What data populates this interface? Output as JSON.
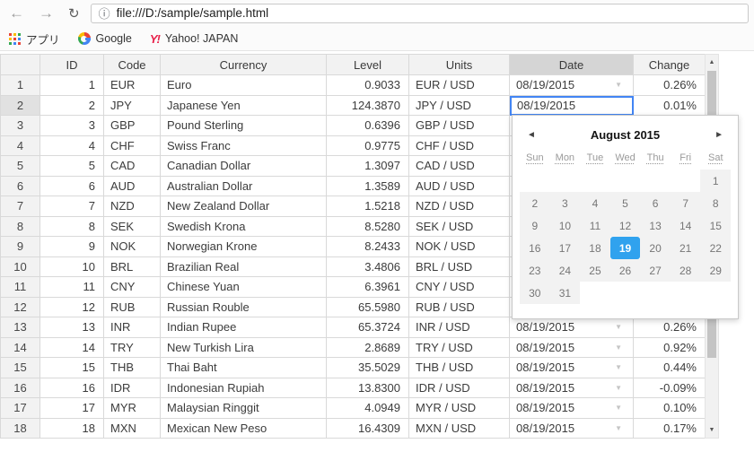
{
  "browser": {
    "toolbar": {
      "url": "file:///D:/sample/sample.html"
    },
    "bookmarks_bar": {
      "items": [
        {
          "label": "アプリ"
        },
        {
          "label": "Google"
        },
        {
          "label": "Yahoo! JAPAN"
        }
      ]
    }
  },
  "icons": {
    "back": "←",
    "forward": "→",
    "reload": "↻",
    "info": "ⓘ",
    "dropdown": "▼",
    "yahoo": "Y!",
    "calendar_prev": "◄",
    "calendar_next": "►",
    "scroll_up": "▲",
    "scroll_down": "▼"
  },
  "table": {
    "columns": [
      "ID",
      "Code",
      "Currency",
      "Level",
      "Units",
      "Date",
      "Change"
    ],
    "selected": {
      "row": 2,
      "column": "Date"
    },
    "rows": [
      {
        "id": "1",
        "code": "EUR",
        "currency": "Euro",
        "level": "0.9033",
        "units": "EUR / USD",
        "date": "08/19/2015",
        "change": "0.26%"
      },
      {
        "id": "2",
        "code": "JPY",
        "currency": "Japanese Yen",
        "level": "124.3870",
        "units": "JPY / USD",
        "date": "08/19/2015",
        "change": "0.01%"
      },
      {
        "id": "3",
        "code": "GBP",
        "currency": "Pound Sterling",
        "level": "0.6396",
        "units": "GBP / USD",
        "date": "",
        "change": ""
      },
      {
        "id": "4",
        "code": "CHF",
        "currency": "Swiss Franc",
        "level": "0.9775",
        "units": "CHF / USD",
        "date": "",
        "change": ""
      },
      {
        "id": "5",
        "code": "CAD",
        "currency": "Canadian Dollar",
        "level": "1.3097",
        "units": "CAD / USD",
        "date": "",
        "change": ""
      },
      {
        "id": "6",
        "code": "AUD",
        "currency": "Australian Dollar",
        "level": "1.3589",
        "units": "AUD / USD",
        "date": "",
        "change": ""
      },
      {
        "id": "7",
        "code": "NZD",
        "currency": "New Zealand Dollar",
        "level": "1.5218",
        "units": "NZD / USD",
        "date": "",
        "change": ""
      },
      {
        "id": "8",
        "code": "SEK",
        "currency": "Swedish Krona",
        "level": "8.5280",
        "units": "SEK / USD",
        "date": "",
        "change": ""
      },
      {
        "id": "9",
        "code": "NOK",
        "currency": "Norwegian Krone",
        "level": "8.2433",
        "units": "NOK / USD",
        "date": "",
        "change": ""
      },
      {
        "id": "10",
        "code": "BRL",
        "currency": "Brazilian Real",
        "level": "3.4806",
        "units": "BRL / USD",
        "date": "",
        "change": ""
      },
      {
        "id": "11",
        "code": "CNY",
        "currency": "Chinese Yuan",
        "level": "6.3961",
        "units": "CNY / USD",
        "date": "",
        "change": ""
      },
      {
        "id": "12",
        "code": "RUB",
        "currency": "Russian Rouble",
        "level": "65.5980",
        "units": "RUB / USD",
        "date": "",
        "change": ""
      },
      {
        "id": "13",
        "code": "INR",
        "currency": "Indian Rupee",
        "level": "65.3724",
        "units": "INR / USD",
        "date": "08/19/2015",
        "change": "0.26%"
      },
      {
        "id": "14",
        "code": "TRY",
        "currency": "New Turkish Lira",
        "level": "2.8689",
        "units": "TRY / USD",
        "date": "08/19/2015",
        "change": "0.92%"
      },
      {
        "id": "15",
        "code": "THB",
        "currency": "Thai Baht",
        "level": "35.5029",
        "units": "THB / USD",
        "date": "08/19/2015",
        "change": "0.44%"
      },
      {
        "id": "16",
        "code": "IDR",
        "currency": "Indonesian Rupiah",
        "level": "13.8300",
        "units": "IDR / USD",
        "date": "08/19/2015",
        "change": "-0.09%"
      },
      {
        "id": "17",
        "code": "MYR",
        "currency": "Malaysian Ringgit",
        "level": "4.0949",
        "units": "MYR / USD",
        "date": "08/19/2015",
        "change": "0.10%"
      },
      {
        "id": "18",
        "code": "MXN",
        "currency": "Mexican New Peso",
        "level": "16.4309",
        "units": "MXN / USD",
        "date": "08/19/2015",
        "change": "0.17%"
      }
    ]
  },
  "calendar": {
    "title": "August 2015",
    "day_headers": [
      "Sun",
      "Mon",
      "Tue",
      "Wed",
      "Thu",
      "Fri",
      "Sat"
    ],
    "weeks": [
      [
        "",
        "",
        "",
        "",
        "",
        "",
        "1"
      ],
      [
        "2",
        "3",
        "4",
        "5",
        "6",
        "7",
        "8"
      ],
      [
        "9",
        "10",
        "11",
        "12",
        "13",
        "14",
        "15"
      ],
      [
        "16",
        "17",
        "18",
        "19",
        "20",
        "21",
        "22"
      ],
      [
        "23",
        "24",
        "25",
        "26",
        "27",
        "28",
        "29"
      ],
      [
        "30",
        "31",
        "",
        "",
        "",
        "",
        ""
      ]
    ],
    "selected_day": "19"
  },
  "colors": {
    "selection_border": "#4285f4",
    "calendar_selected_bg": "#30a2ee",
    "header_bg": "#f2f2f2",
    "selected_header_bg": "#d5d5d5",
    "grid_border": "#d9d9d9",
    "yahoo_red": "#e8224b",
    "google_blue": "#4285f4"
  }
}
